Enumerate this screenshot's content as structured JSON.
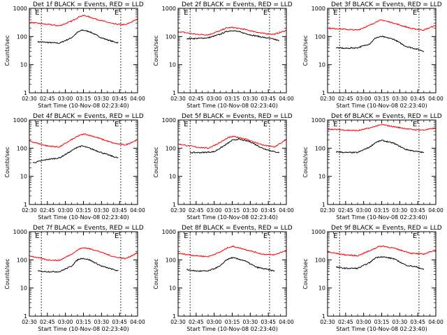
{
  "figure": {
    "xlabel": "Start Time (10-Nov-08 02:23:40)",
    "ylabel": "Counts/sec",
    "xticks": [
      "02:30",
      "02:45",
      "03:00",
      "03:15",
      "03:30",
      "03:45",
      "04:00"
    ],
    "yticks": [
      "1",
      "10",
      "100",
      "1000"
    ],
    "marker_labels": [
      "E",
      "E"
    ],
    "colors": {
      "events": "#000000",
      "lld": "#ff0000"
    }
  },
  "chart_data": [
    {
      "type": "line",
      "title": "Det 1f BLACK = Events, RED = LLD",
      "y_scale": "log",
      "ylim": [
        1,
        1000
      ],
      "x_range_minutes": [
        "02:30",
        "04:00"
      ],
      "markers_x": [
        "02:40",
        "03:46"
      ],
      "series": [
        {
          "name": "Events",
          "x": [
            "02:37",
            "02:45",
            "02:55",
            "03:05",
            "03:10",
            "03:14",
            "03:20",
            "03:30",
            "03:40",
            "03:44"
          ],
          "y": [
            65,
            62,
            58,
            90,
            140,
            170,
            150,
            90,
            65,
            60
          ]
        },
        {
          "name": "LLD",
          "x": [
            "02:30",
            "02:45",
            "02:55",
            "03:05",
            "03:12",
            "03:16",
            "03:25",
            "03:40",
            "03:50",
            "04:00"
          ],
          "y": [
            320,
            270,
            240,
            350,
            520,
            560,
            420,
            280,
            260,
            420
          ]
        }
      ]
    },
    {
      "type": "line",
      "title": "Det 2f BLACK = Events, RED = LLD",
      "y_scale": "log",
      "ylim": [
        1,
        1000
      ],
      "x_range_minutes": [
        "02:30",
        "04:00"
      ],
      "markers_x": [
        "02:40",
        "03:46"
      ],
      "series": [
        {
          "name": "Events",
          "x": [
            "02:37",
            "02:45",
            "02:55",
            "03:05",
            "03:10",
            "03:15",
            "03:20",
            "03:30",
            "03:40",
            "03:50",
            "03:54"
          ],
          "y": [
            85,
            85,
            90,
            120,
            150,
            165,
            150,
            115,
            95,
            80,
            70
          ]
        },
        {
          "name": "LLD",
          "x": [
            "02:30",
            "02:45",
            "02:55",
            "03:05",
            "03:10",
            "03:15",
            "03:25",
            "03:40",
            "03:50",
            "04:00"
          ],
          "y": [
            150,
            120,
            115,
            160,
            200,
            210,
            180,
            130,
            120,
            165
          ]
        }
      ]
    },
    {
      "type": "line",
      "title": "Det 3f BLACK = Events, RED = LLD",
      "y_scale": "log",
      "ylim": [
        1,
        1000
      ],
      "x_range_minutes": [
        "02:30",
        "04:00"
      ],
      "markers_x": [
        "02:40",
        "03:46"
      ],
      "series": [
        {
          "name": "Events",
          "x": [
            "02:37",
            "02:45",
            "02:55",
            "03:05",
            "03:10",
            "03:15",
            "03:25",
            "03:35",
            "03:45",
            "03:50"
          ],
          "y": [
            40,
            38,
            40,
            55,
            90,
            100,
            80,
            45,
            35,
            30
          ]
        },
        {
          "name": "LLD",
          "x": [
            "02:30",
            "02:45",
            "02:55",
            "03:05",
            "03:12",
            "03:16",
            "03:25",
            "03:40",
            "03:50",
            "04:00"
          ],
          "y": [
            200,
            180,
            170,
            250,
            360,
            380,
            300,
            190,
            170,
            250
          ]
        }
      ]
    },
    {
      "type": "line",
      "title": "Det 4f BLACK = Events, RED = LLD",
      "y_scale": "log",
      "ylim": [
        1,
        1000
      ],
      "x_range_minutes": [
        "02:30",
        "04:00"
      ],
      "markers_x": [
        "02:40",
        "03:46"
      ],
      "series": [
        {
          "name": "Events",
          "x": [
            "02:33",
            "02:45",
            "02:55",
            "03:05",
            "03:10",
            "03:14",
            "03:20",
            "03:30",
            "03:40",
            "03:44"
          ],
          "y": [
            30,
            40,
            45,
            80,
            110,
            120,
            100,
            70,
            50,
            45
          ]
        },
        {
          "name": "LLD",
          "x": [
            "02:30",
            "02:45",
            "02:55",
            "03:05",
            "03:12",
            "03:16",
            "03:25",
            "03:40",
            "03:50",
            "04:00"
          ],
          "y": [
            180,
            120,
            110,
            200,
            290,
            320,
            250,
            150,
            130,
            200
          ]
        }
      ]
    },
    {
      "type": "line",
      "title": "Det 5f BLACK = Events, RED = LLD",
      "y_scale": "log",
      "ylim": [
        1,
        1000
      ],
      "x_range_minutes": [
        "02:30",
        "04:00"
      ],
      "markers_x": [
        "02:40",
        "03:46"
      ],
      "series": [
        {
          "name": "Events",
          "x": [
            "02:40",
            "02:50",
            "03:00",
            "03:08",
            "03:15",
            "03:20",
            "03:30",
            "03:40",
            "03:50",
            "03:54"
          ],
          "y": [
            70,
            70,
            75,
            120,
            190,
            210,
            170,
            100,
            75,
            70
          ]
        },
        {
          "name": "LLD",
          "x": [
            "02:30",
            "02:45",
            "02:55",
            "03:05",
            "03:12",
            "03:16",
            "03:25",
            "03:40",
            "03:50",
            "04:00"
          ],
          "y": [
            140,
            110,
            100,
            160,
            240,
            260,
            220,
            130,
            110,
            200
          ]
        }
      ]
    },
    {
      "type": "line",
      "title": "Det 6f BLACK = Events, RED = LLD",
      "y_scale": "log",
      "ylim": [
        1,
        1000
      ],
      "x_range_minutes": [
        "02:30",
        "04:00"
      ],
      "markers_x": [
        "02:40",
        "03:46"
      ],
      "series": [
        {
          "name": "Events",
          "x": [
            "02:37",
            "02:45",
            "02:55",
            "03:05",
            "03:10",
            "03:15",
            "03:25",
            "03:35",
            "03:45",
            "03:50"
          ],
          "y": [
            75,
            70,
            70,
            110,
            160,
            190,
            150,
            90,
            75,
            70
          ]
        },
        {
          "name": "LLD",
          "x": [
            "02:30",
            "02:45",
            "02:55",
            "03:05",
            "03:12",
            "03:16",
            "03:25",
            "03:40",
            "03:50",
            "04:00"
          ],
          "y": [
            480,
            440,
            420,
            520,
            640,
            680,
            580,
            460,
            440,
            520
          ]
        }
      ]
    },
    {
      "type": "line",
      "title": "Det 7f BLACK = Events, RED = LLD",
      "y_scale": "log",
      "ylim": [
        1,
        1000
      ],
      "x_range_minutes": [
        "02:30",
        "04:00"
      ],
      "markers_x": [
        "02:40",
        "03:46"
      ],
      "series": [
        {
          "name": "Events",
          "x": [
            "02:37",
            "02:45",
            "02:55",
            "03:05",
            "03:10",
            "03:14",
            "03:20",
            "03:30",
            "03:40",
            "03:44"
          ],
          "y": [
            40,
            38,
            38,
            60,
            100,
            115,
            100,
            60,
            45,
            40
          ]
        },
        {
          "name": "LLD",
          "x": [
            "02:30",
            "02:45",
            "02:55",
            "03:05",
            "03:12",
            "03:16",
            "03:25",
            "03:40",
            "03:50",
            "04:00"
          ],
          "y": [
            140,
            100,
            95,
            160,
            250,
            270,
            220,
            130,
            110,
            180
          ]
        }
      ]
    },
    {
      "type": "line",
      "title": "Det 8f BLACK = Events, RED = LLD",
      "y_scale": "log",
      "ylim": [
        1,
        1000
      ],
      "x_range_minutes": [
        "02:30",
        "04:00"
      ],
      "markers_x": [
        "02:40",
        "03:46"
      ],
      "series": [
        {
          "name": "Events",
          "x": [
            "02:37",
            "02:45",
            "02:55",
            "03:05",
            "03:10",
            "03:15",
            "03:25",
            "03:35",
            "03:45",
            "03:50"
          ],
          "y": [
            45,
            40,
            40,
            60,
            100,
            120,
            95,
            55,
            45,
            40
          ]
        },
        {
          "name": "LLD",
          "x": [
            "02:30",
            "02:45",
            "02:55",
            "03:05",
            "03:12",
            "03:16",
            "03:25",
            "03:40",
            "03:50",
            "04:00"
          ],
          "y": [
            170,
            140,
            130,
            190,
            280,
            300,
            240,
            160,
            150,
            220
          ]
        }
      ]
    },
    {
      "type": "line",
      "title": "Det 9f BLACK = Events, RED = LLD",
      "y_scale": "log",
      "ylim": [
        1,
        1000
      ],
      "x_range_minutes": [
        "02:30",
        "04:00"
      ],
      "markers_x": [
        "02:40",
        "03:46"
      ],
      "series": [
        {
          "name": "Events",
          "x": [
            "02:37",
            "02:45",
            "02:55",
            "03:05",
            "03:10",
            "03:15",
            "03:25",
            "03:35",
            "03:45",
            "03:50"
          ],
          "y": [
            55,
            50,
            50,
            80,
            120,
            130,
            110,
            65,
            55,
            45
          ]
        },
        {
          "name": "LLD",
          "x": [
            "02:30",
            "02:45",
            "02:55",
            "03:05",
            "03:12",
            "03:16",
            "03:25",
            "03:40",
            "03:50",
            "04:00"
          ],
          "y": [
            190,
            150,
            140,
            210,
            290,
            310,
            260,
            170,
            160,
            230
          ]
        }
      ]
    }
  ]
}
